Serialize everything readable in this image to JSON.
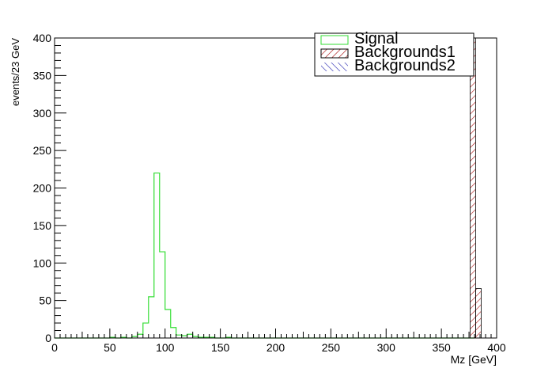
{
  "chart_data": {
    "type": "histogram",
    "xlabel": "Mz [GeV]",
    "ylabel": "events/23 GeV",
    "xlim": [
      0,
      400
    ],
    "ylim": [
      0,
      400
    ],
    "x_ticks": [
      0,
      50,
      100,
      150,
      200,
      250,
      300,
      350,
      400
    ],
    "y_ticks": [
      0,
      50,
      100,
      150,
      200,
      250,
      300,
      350,
      400
    ],
    "grid": false,
    "legend_position": "top-right",
    "series": [
      {
        "name": "Signal",
        "style": "outline",
        "color": "#33dd33",
        "bin_edges": [
          0,
          5,
          10,
          15,
          20,
          25,
          30,
          35,
          40,
          45,
          50,
          55,
          60,
          65,
          70,
          75,
          80,
          85,
          90,
          95,
          100,
          105,
          110,
          115,
          120,
          125,
          130,
          135,
          140,
          145,
          150,
          155,
          160,
          165,
          170,
          175,
          180,
          185,
          190,
          195,
          200,
          205,
          210,
          215,
          220,
          225,
          230,
          235,
          240,
          245,
          250,
          255,
          260,
          265,
          270,
          275,
          280,
          285,
          290,
          295,
          300,
          305,
          310,
          315,
          320,
          325,
          330,
          335,
          340,
          345,
          350,
          355,
          360,
          365,
          370,
          375,
          380
        ],
        "counts": [
          0,
          0,
          0,
          0,
          0,
          0,
          0,
          0,
          0,
          0,
          1,
          0,
          1,
          0,
          2,
          5,
          20,
          55,
          220,
          115,
          38,
          14,
          4,
          3,
          5,
          2,
          1,
          1,
          1,
          0,
          0,
          1,
          0,
          0,
          0,
          0,
          0,
          0,
          0,
          0,
          0,
          0,
          0,
          0,
          0,
          0,
          0,
          0,
          0,
          0,
          0,
          0,
          0,
          0,
          0,
          0,
          0,
          0,
          0,
          0,
          0,
          0,
          0,
          0,
          0,
          0,
          0,
          0,
          0,
          0,
          0,
          0,
          0,
          0,
          0,
          0
        ]
      },
      {
        "name": "Backgrounds1",
        "style": "hatched",
        "color": "#aa1111",
        "bin_edges": [
          376,
          381,
          386
        ],
        "counts": [
          400,
          66
        ]
      },
      {
        "name": "Backgrounds2",
        "style": "hatched",
        "color": "#1111aa",
        "bin_edges": [],
        "counts": []
      }
    ]
  }
}
